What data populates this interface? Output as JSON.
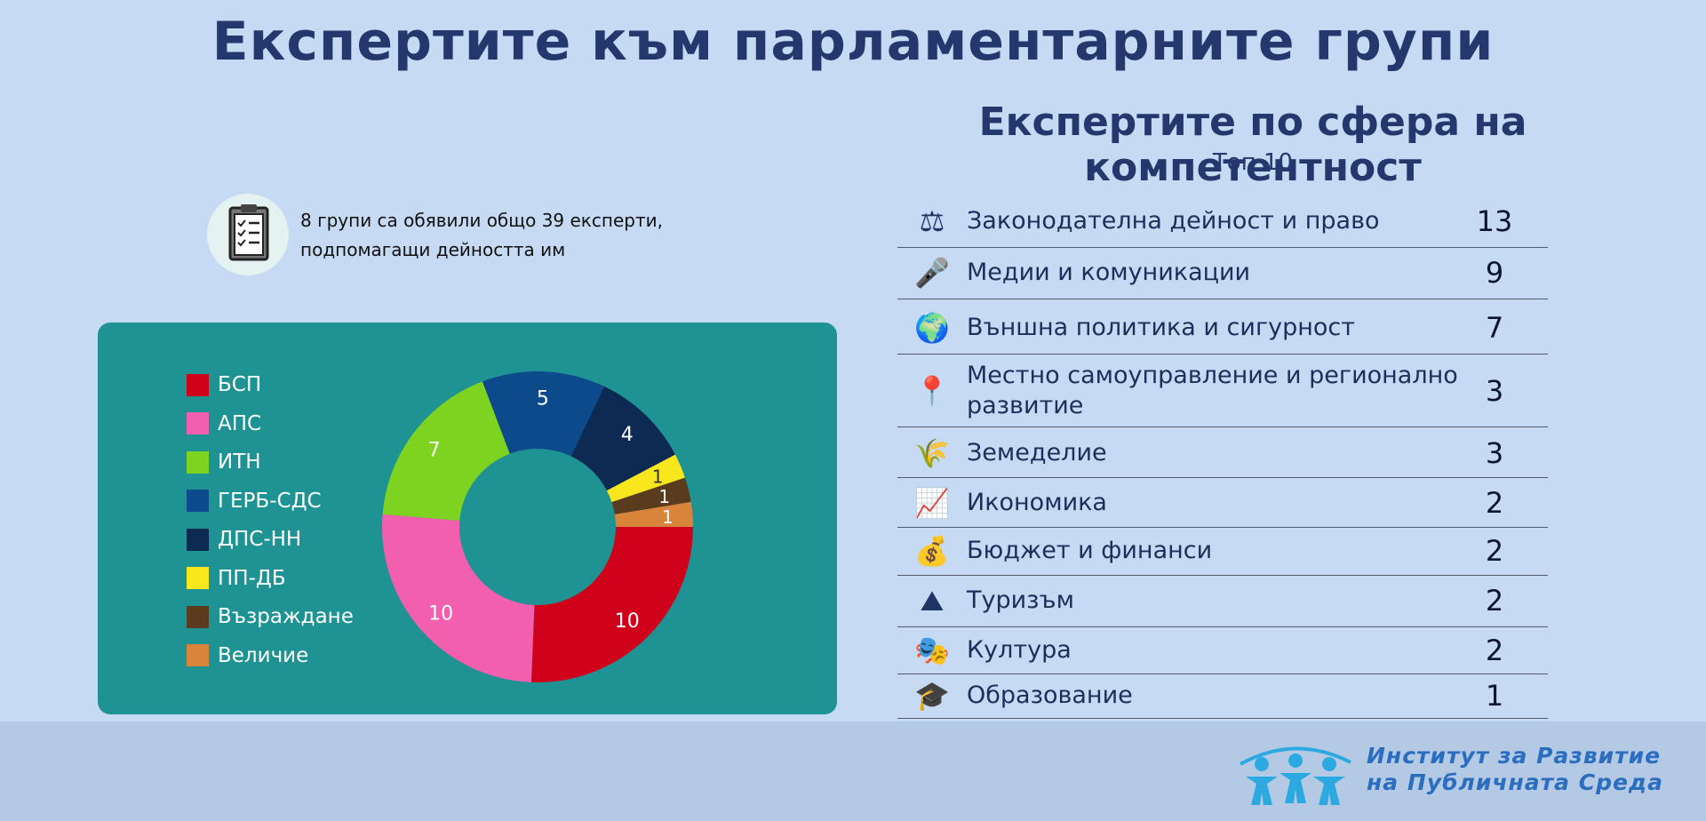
{
  "title": "Експертите към парламентарните групи",
  "summary": {
    "icon": "clipboard-checklist-icon",
    "line1": "8 групи са обявили общо 39 експерти,",
    "line2": "подпомагащи дейността им"
  },
  "chart_data": [
    {
      "type": "pie",
      "donut": true,
      "series": [
        {
          "name": "БСП",
          "value": 10,
          "color": "#d0021b"
        },
        {
          "name": "АПС",
          "value": 10,
          "color": "#f15fae"
        },
        {
          "name": "ИТН",
          "value": 7,
          "color": "#7ed321"
        },
        {
          "name": "ГЕРБ-СДС",
          "value": 5,
          "color": "#0d4a8c"
        },
        {
          "name": "ДПС-НН",
          "value": 4,
          "color": "#0c2a52"
        },
        {
          "name": "ПП-ДБ",
          "value": 1,
          "color": "#f8e71c"
        },
        {
          "name": "Възраждане",
          "value": 1,
          "color": "#5a3b1e"
        },
        {
          "name": "Величие",
          "value": 1,
          "color": "#d9843b"
        }
      ],
      "legend_position": "left"
    },
    {
      "type": "table",
      "title": "Експертите по сфера на компетентност",
      "subtitle": "Топ 10",
      "rows": [
        {
          "label": "Законодателна дейност и право",
          "value": 13,
          "icon": "scales-of-justice-icon"
        },
        {
          "label": "Медии и комуникации",
          "value": 9,
          "icon": "microphone-icon"
        },
        {
          "label": "Външна политика и сигурност",
          "value": 7,
          "icon": "globe-icon"
        },
        {
          "label": "Местно самоуправление и регионално развитие",
          "value": 3,
          "icon": "map-location-pins-icon"
        },
        {
          "label": "Земеделие",
          "value": 3,
          "icon": "wheat-icon"
        },
        {
          "label": "Икономика",
          "value": 2,
          "icon": "growth-chart-icon"
        },
        {
          "label": "Бюджет и финанси",
          "value": 2,
          "icon": "money-bag-calculator-icon"
        },
        {
          "label": "Туризъм",
          "value": 2,
          "icon": "mountain-travel-icon"
        },
        {
          "label": "Култура",
          "value": 2,
          "icon": "theater-masks-icon"
        },
        {
          "label": "Образование",
          "value": 1,
          "icon": "graduation-cap-icon"
        }
      ]
    }
  ],
  "footer": {
    "logo_line1": "Институт за Развитие",
    "logo_line2": "на Публичната Среда",
    "logo_icon": "people-group-logo-icon",
    "logo_color": "#2da9e1",
    "text_color": "#2b6ec0"
  }
}
